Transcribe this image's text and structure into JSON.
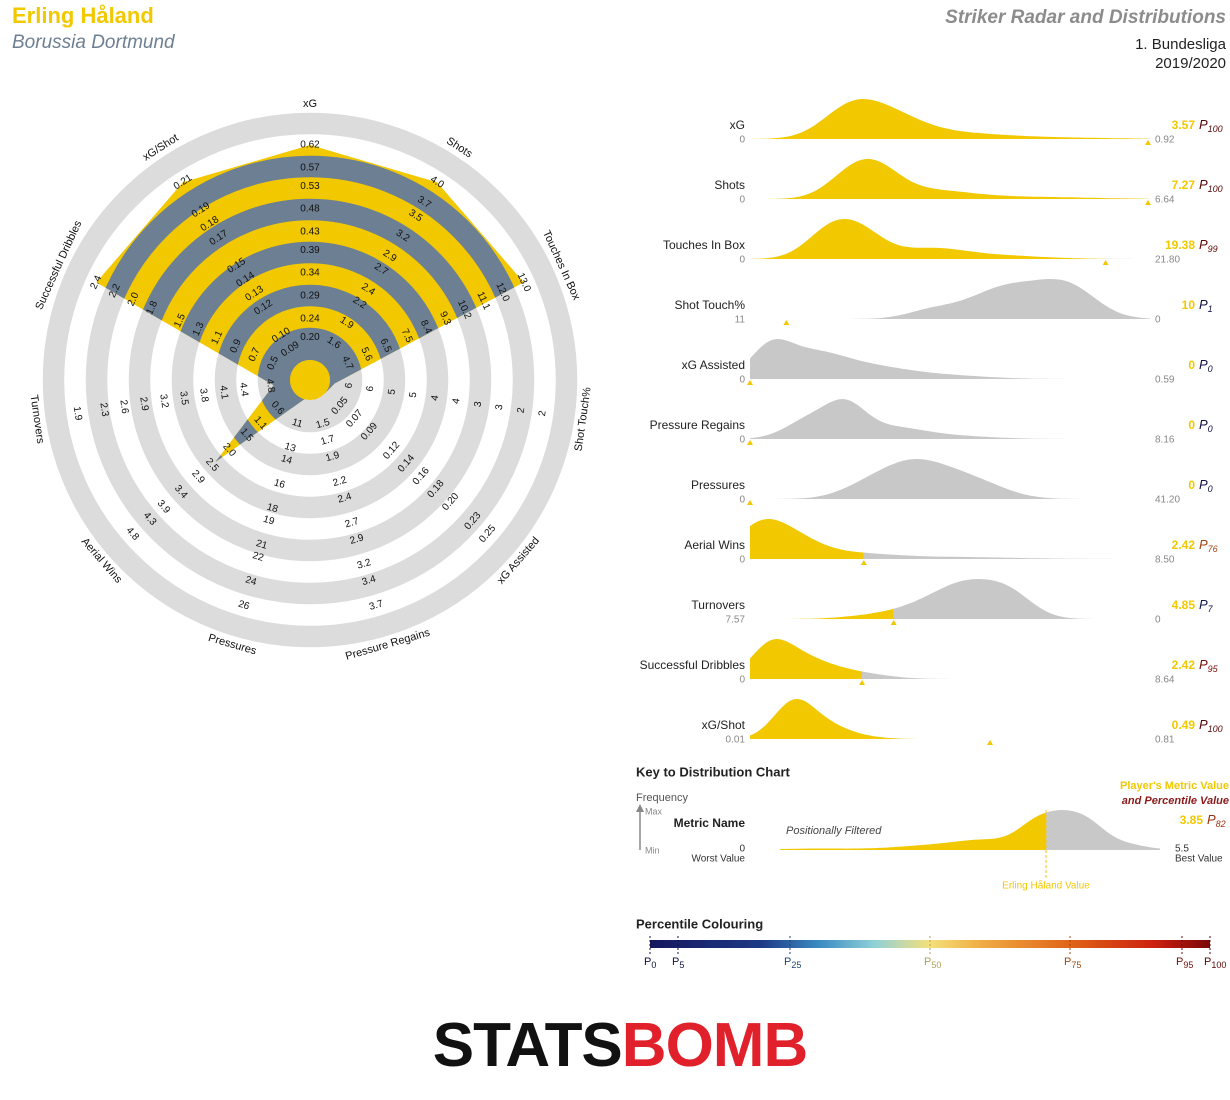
{
  "header": {
    "player": "Erling Håland",
    "team": "Borussia Dortmund",
    "title": "Striker Radar and Distributions",
    "competition": "1. Bundesliga",
    "season": "2019/2020"
  },
  "chart_data": [
    {
      "type": "radar",
      "axes": [
        {
          "name": "xG",
          "lim": [
            0.15,
            0.62
          ],
          "ticks": [
            {
              "value": 0.2,
              "label": "0.20"
            },
            0.24,
            0.29,
            0.34,
            0.39,
            0.43,
            0.48,
            0.53,
            0.57,
            0.62
          ]
        },
        {
          "name": "Shots",
          "lim": [
            1.3,
            4
          ],
          "ticks": [
            1.6,
            1.9,
            2.2,
            2.4,
            2.7,
            2.9,
            3.2,
            3.5,
            3.7,
            {
              "value": 4,
              "label": "4.0"
            }
          ]
        },
        {
          "name": "Touches In Box",
          "lim": [
            3.8,
            13
          ],
          "ticks": [
            4.7,
            5.6,
            6.5,
            7.5,
            8.4,
            9.3,
            10.2,
            11.1,
            {
              "value": 12,
              "label": "12.0"
            },
            {
              "value": 13,
              "label": "13.0"
            }
          ]
        },
        {
          "name": "Shot Touch%",
          "lim": [
            6.4,
            2
          ],
          "ticks": [
            6,
            {
              "value": 5.56,
              "label": "6"
            },
            {
              "value": 5.11,
              "label": "5"
            },
            {
              "value": 4.67,
              "label": "5"
            },
            {
              "value": 4.22,
              "label": "4"
            },
            {
              "value": 3.78,
              "label": "4"
            },
            {
              "value": 3.33,
              "label": "3"
            },
            {
              "value": 2.89,
              "label": "3"
            },
            {
              "value": 2.44,
              "label": "2"
            },
            2
          ]
        },
        {
          "name": "xG Assisted",
          "lim": [
            0.03,
            0.25
          ],
          "ticks": [
            0.05,
            0.07,
            0.09,
            0.12,
            0.14,
            0.16,
            0.18,
            {
              "value": 0.2,
              "label": "0.20"
            },
            0.23,
            0.25
          ]
        },
        {
          "name": "Pressure Regains",
          "lim": [
            1.2,
            3.7
          ],
          "ticks": [
            1.5,
            1.7,
            1.9,
            2.2,
            2.4,
            2.7,
            2.9,
            3.2,
            3.4,
            3.7
          ]
        },
        {
          "name": "Pressures",
          "lim": [
            9,
            26
          ],
          "ticks": [
            11,
            13,
            14,
            16,
            18,
            19,
            21,
            22,
            24,
            26
          ]
        },
        {
          "name": "Aerial Wins",
          "lim": [
            0.1,
            4.8
          ],
          "ticks": [
            0.6,
            1.1,
            1.5,
            {
              "value": 2,
              "label": "2.0"
            },
            2.5,
            2.9,
            3.4,
            3.9,
            4.3,
            4.8
          ]
        },
        {
          "name": "Turnovers",
          "lim": [
            5.1,
            1.9
          ],
          "ticks": [
            4.8,
            4.4,
            4.1,
            3.8,
            3.5,
            3.2,
            2.9,
            2.6,
            2.3,
            1.9
          ]
        },
        {
          "name": "Successful Dribbles",
          "lim": [
            0.3,
            2.4
          ],
          "ticks": [
            0.5,
            0.7,
            0.9,
            1.1,
            1.3,
            1.5,
            1.8,
            {
              "value": 2,
              "label": "2.0"
            },
            2.2,
            2.4
          ]
        },
        {
          "name": "xG/Shot",
          "lim": [
            0.08,
            0.21
          ],
          "ticks": [
            0.09,
            {
              "value": 0.1,
              "label": "0.10"
            },
            0.12,
            0.13,
            0.14,
            0.15,
            0.17,
            0.18,
            0.19,
            0.21
          ]
        }
      ],
      "values": [
        0.62,
        4,
        13,
        6.3,
        0.03,
        1.2,
        9,
        2.4,
        4.85,
        2.4,
        0.21
      ],
      "colors": {
        "band": "#dcdcdc",
        "fill": "#f2c800",
        "fill_alt": "#6d7f92"
      }
    },
    {
      "type": "distribution",
      "categories": [
        "xG",
        "Shots",
        "Touches In Box",
        "Shot Touch%",
        "xG Assisted",
        "Pressure Regains",
        "Pressures",
        "Aerial Wins",
        "Turnovers",
        "Successful Dribbles",
        "xG/Shot"
      ],
      "values": [
        3.57,
        7.27,
        19.38,
        10,
        0,
        0,
        0,
        2.42,
        4.85,
        2.42,
        0.49
      ],
      "worst": [
        0,
        0,
        0,
        11,
        0,
        0,
        0,
        0,
        7.57,
        0,
        0.01
      ],
      "best": [
        0.92,
        6.64,
        {
          "value": 21.8,
          "label": "21.80"
        },
        0,
        0.59,
        8.16,
        {
          "value": 41.2,
          "label": "41.20"
        },
        {
          "value": 8.5,
          "label": "8.50"
        },
        0,
        8.64,
        0.81
      ],
      "percentiles": [
        100,
        100,
        99,
        1,
        0,
        0,
        0,
        76,
        7,
        95,
        100
      ],
      "percentile_prefix": "P",
      "color": "#f2c800",
      "other_color": "#c8c8c8"
    }
  ],
  "key": {
    "title": "Key to Distribution Chart",
    "frequency": "Frequency",
    "max": "Max",
    "min": "Min",
    "metric_name": "Metric Name",
    "worst_label": "Worst Value",
    "worst": 0,
    "best": 5.5,
    "best_label": "Best Value",
    "filter_note": "Positionally Filtered",
    "value_note": "Player's Metric Value",
    "percentile_note": "and Percentile Value",
    "value": 3.85,
    "percentile": 82,
    "marker_label": "Erling Håland Value"
  },
  "percentile_scale": {
    "title": "Percentile Colouring",
    "prefix": "P",
    "ticks": [
      0,
      5,
      25,
      50,
      75,
      95,
      100
    ],
    "stops": [
      0,
      20,
      30,
      40,
      50,
      60,
      75,
      90,
      100
    ],
    "colors": [
      "#15165e",
      "#1d3a86",
      "#3a8ac2",
      "#8fd0d8",
      "#f5e07a",
      "#f0a840",
      "#e06418",
      "#cc2010",
      "#7a0808"
    ]
  },
  "logo": {
    "left": "STATS",
    "right": "BOMB"
  }
}
